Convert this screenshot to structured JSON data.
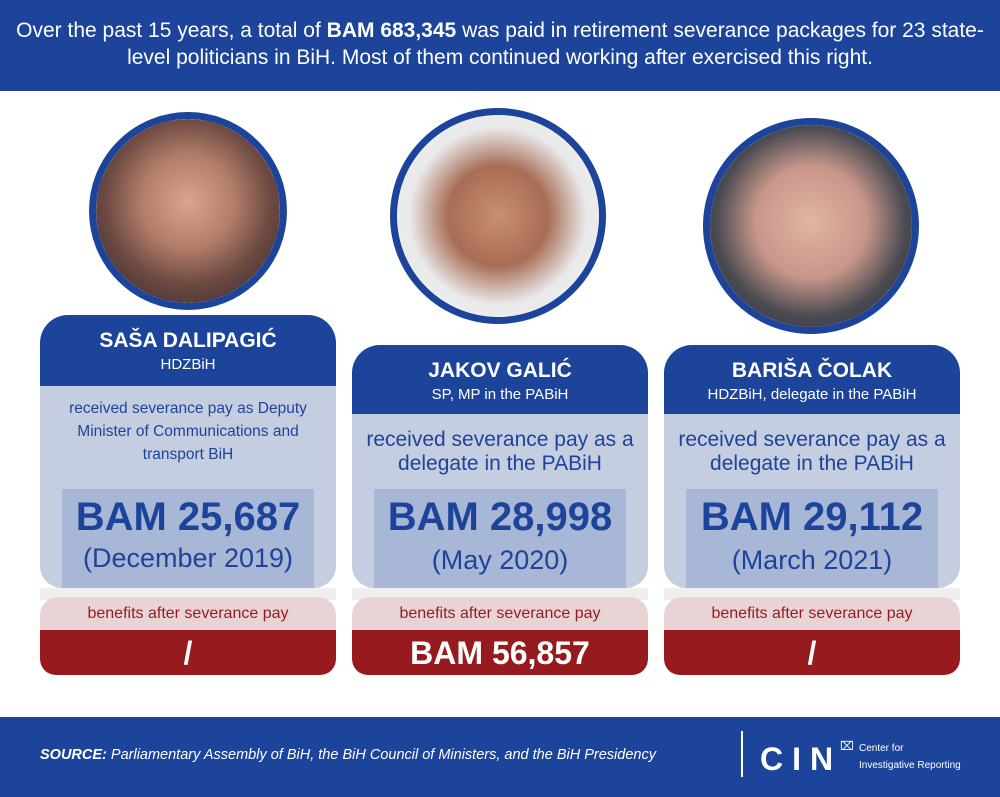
{
  "headline": {
    "pre": "Over the past 15 years, a total of ",
    "amount": "BAM 683,345",
    "post": " was paid in retirement severance packages for 23 state-level politicians in BiH. Most of them continued working after exercised this right."
  },
  "cards": [
    {
      "name": "SAŠA DALIPAGIĆ",
      "party": "HDZBiH",
      "description": "received severance pay as Deputy Minister of Communications and transport BiH",
      "amount": "BAM 25,687",
      "date": "(December 2019)",
      "benefits_label": "benefits after severance pay",
      "benefits_value": "/"
    },
    {
      "name": "JAKOV GALIĆ",
      "party": "SP, MP in the PABiH",
      "description": "received severance pay as a delegate in the PABiH",
      "amount": "BAM 28,998",
      "date": "(May 2020)",
      "benefits_label": "benefits after severance pay",
      "benefits_value": "BAM 56,857"
    },
    {
      "name": "BARIŠA ČOLAK",
      "party": "HDZBiH, delegate in the PABiH",
      "description": "received severance pay as a delegate in the PABiH",
      "amount": "BAM 29,112",
      "date": "(March 2021)",
      "benefits_label": "benefits after severance pay",
      "benefits_value": "/"
    }
  ],
  "footer": {
    "source_label": "SOURCE:",
    "source_text": " Parliamentary Assembly of BiH, the BiH Council of Ministers, and the BiH Presidency",
    "logo": "CIN",
    "org_line1": "Center for",
    "org_line2": "Investigative Reporting"
  },
  "colors": {
    "blue": "#1c449b",
    "light": "#c5cde0",
    "red": "#971b1e",
    "pink": "#e8d4d4"
  }
}
